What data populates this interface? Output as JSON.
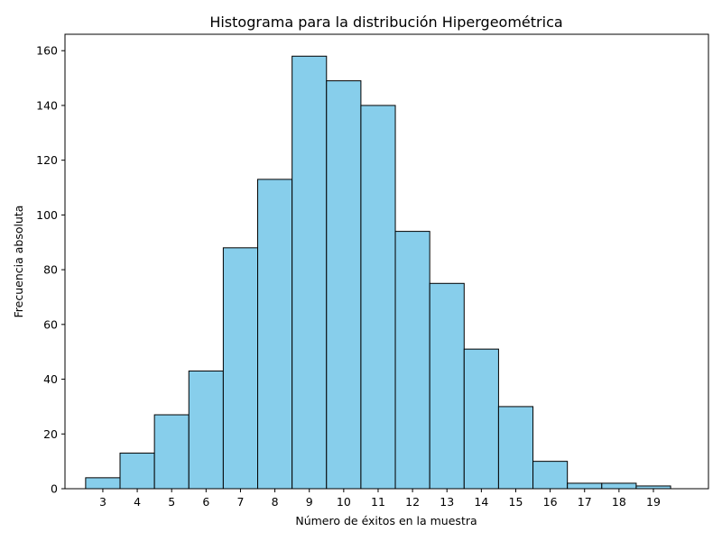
{
  "chart_data": {
    "type": "bar",
    "title": "Histograma para la distribución Hipergeométrica",
    "xlabel": "Número de éxitos en la muestra",
    "ylabel": "Frecuencia absoluta",
    "categories": [
      "3",
      "4",
      "5",
      "6",
      "7",
      "8",
      "9",
      "10",
      "11",
      "12",
      "13",
      "14",
      "15",
      "16",
      "17",
      "18",
      "19"
    ],
    "x": [
      3,
      4,
      5,
      6,
      7,
      8,
      9,
      10,
      11,
      12,
      13,
      14,
      15,
      16,
      17,
      18,
      19
    ],
    "values": [
      4,
      13,
      27,
      43,
      88,
      113,
      158,
      149,
      140,
      94,
      75,
      51,
      30,
      10,
      2,
      2,
      1
    ],
    "xlim": [
      1.9,
      20.6
    ],
    "ylim": [
      0,
      166
    ],
    "yticks": [
      0,
      20,
      40,
      60,
      80,
      100,
      120,
      140,
      160
    ],
    "bar_color": "#87ceeb",
    "edge_color": "#000000",
    "grid": false
  }
}
